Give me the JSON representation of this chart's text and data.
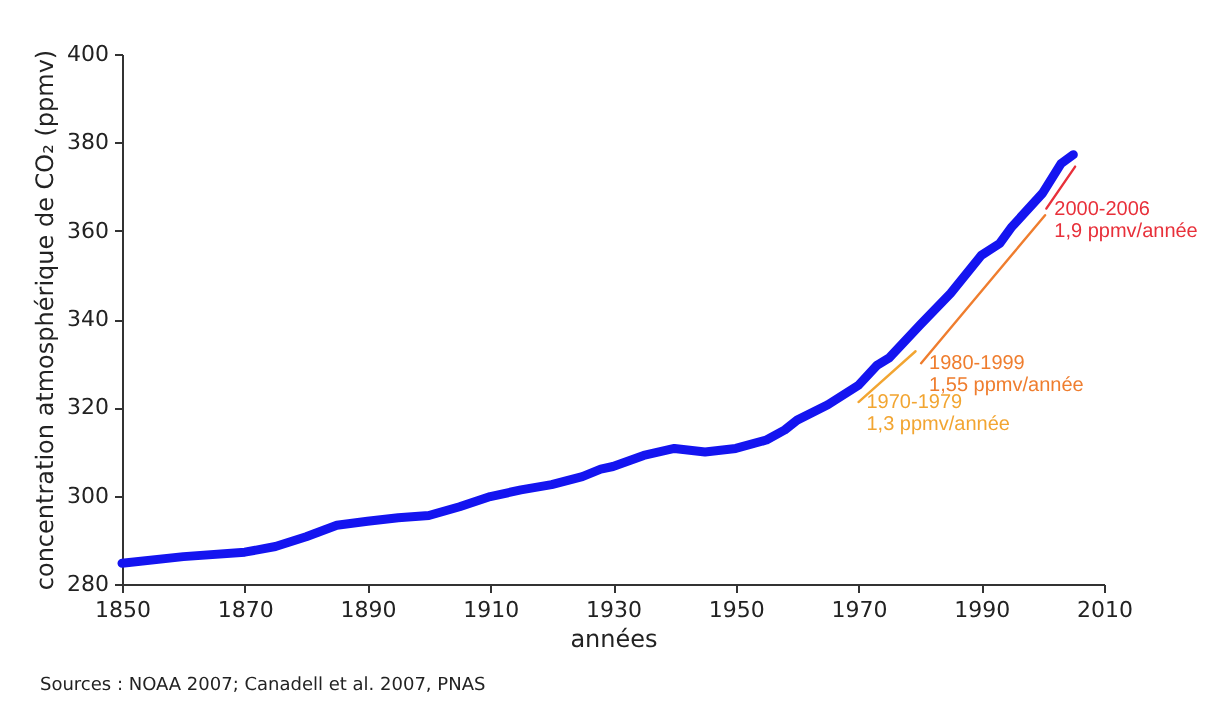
{
  "chart_data": {
    "type": "line",
    "xlabel": "années",
    "ylabel": "concentration atmosphérique de CO₂ (ppmv)",
    "xlim": [
      1850,
      2010
    ],
    "xticks": [
      1850,
      1870,
      1890,
      1910,
      1930,
      1950,
      1970,
      1990,
      2010
    ],
    "ylim": [
      280,
      400
    ],
    "yticks": [
      280,
      300,
      320,
      340,
      360,
      380,
      400
    ],
    "grid": false,
    "marker": "none",
    "line_style": "solid",
    "x": [
      1850,
      1860,
      1870,
      1875,
      1880,
      1885,
      1890,
      1895,
      1900,
      1905,
      1910,
      1915,
      1920,
      1925,
      1928,
      1930,
      1935,
      1940,
      1945,
      1950,
      1955,
      1958,
      1960,
      1965,
      1970,
      1973,
      1975,
      1980,
      1985,
      1990,
      1993,
      1995,
      2000,
      2003,
      2005
    ],
    "series": [
      {
        "color": "#1414f0",
        "values": [
          284.7,
          286.2,
          287.2,
          288.5,
          290.7,
          293.3,
          294.2,
          295,
          295.5,
          297.5,
          299.8,
          301.3,
          302.5,
          304.3,
          306,
          306.6,
          309.1,
          310.7,
          309.9,
          310.7,
          312.6,
          314.9,
          317.1,
          320.6,
          325,
          329.5,
          331.2,
          338.6,
          345.8,
          354.4,
          357.1,
          360.9,
          368.5,
          375.2,
          377.2
        ]
      },
      {
        "name": "1970-1979",
        "type": "line",
        "color": "#f2a531",
        "x": [
          1970,
          1979.3
        ],
        "values": [
          321.2,
          332.7
        ]
      },
      {
        "name": "1980-1999",
        "type": "line",
        "color": "#ef7d2e",
        "x": [
          1980.2,
          2000.4
        ],
        "values": [
          330,
          363.5
        ]
      },
      {
        "name": "2000-2006",
        "type": "line",
        "color": "#e8303a",
        "x": [
          2000.6,
          2005.3
        ],
        "values": [
          365,
          374.5
        ]
      }
    ],
    "annotations": [
      {
        "text": "1,3 ppmv/année",
        "x": 1970,
        "y": 321.2
      },
      {
        "text": "1,55 ppmv/année",
        "x": 1980.2,
        "y": 330
      },
      {
        "text": "1,9 ppmv/année",
        "x": 2000.6,
        "y": 365
      },
      "Sources : NOAA 2007; Canadell et al. 2007, PNAS"
    ]
  }
}
